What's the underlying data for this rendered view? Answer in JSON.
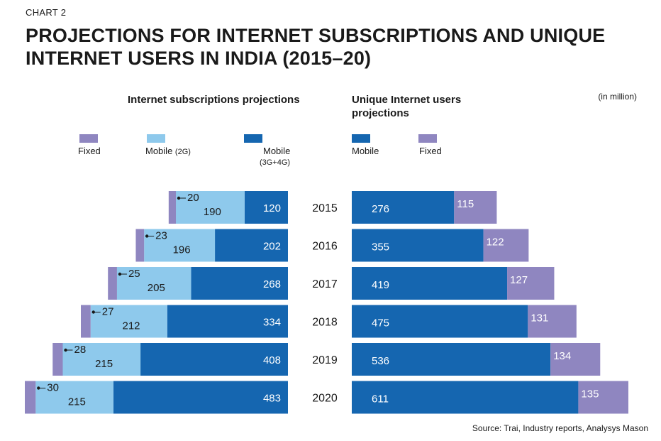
{
  "header": {
    "chart_number": "CHART 2",
    "title": "PROJECTIONS FOR INTERNET SUBSCRIPTIONS AND UNIQUE INTERNET USERS IN INDIA (2015–20)",
    "units": "(in million)"
  },
  "source": "Source: Trai, Industry reports, Analysys Mason",
  "colors": {
    "fixed": "#8f86c0",
    "mobile_2g": "#8ec9ec",
    "mobile_3g4g": "#1566b0"
  },
  "legend_left": [
    {
      "label": "Fixed",
      "sub": ""
    },
    {
      "label": "Mobile",
      "sub": "(2G)"
    },
    {
      "label": "Mobile",
      "sub": "(3G+4G)"
    }
  ],
  "legend_right": [
    {
      "label": "Mobile"
    },
    {
      "label": "Fixed"
    }
  ],
  "chart_data": [
    {
      "type": "bar",
      "orientation": "horizontal",
      "stacked": true,
      "title": "Internet subscriptions projections",
      "categories": [
        "2015",
        "2016",
        "2017",
        "2018",
        "2019",
        "2020"
      ],
      "series": [
        {
          "name": "Fixed",
          "values": [
            20,
            23,
            25,
            27,
            28,
            30
          ]
        },
        {
          "name": "Mobile (2G)",
          "values": [
            190,
            196,
            205,
            212,
            215,
            215
          ]
        },
        {
          "name": "Mobile (3G+4G)",
          "values": [
            120,
            202,
            268,
            334,
            408,
            483
          ]
        }
      ],
      "legend": "top"
    },
    {
      "type": "bar",
      "orientation": "horizontal",
      "stacked": true,
      "title": "Unique Internet users projections",
      "categories": [
        "2015",
        "2016",
        "2017",
        "2018",
        "2019",
        "2020"
      ],
      "series": [
        {
          "name": "Mobile",
          "values": [
            276,
            355,
            419,
            475,
            536,
            611
          ]
        },
        {
          "name": "Fixed",
          "values": [
            115,
            122,
            127,
            131,
            134,
            135
          ]
        }
      ],
      "legend": "top"
    }
  ]
}
